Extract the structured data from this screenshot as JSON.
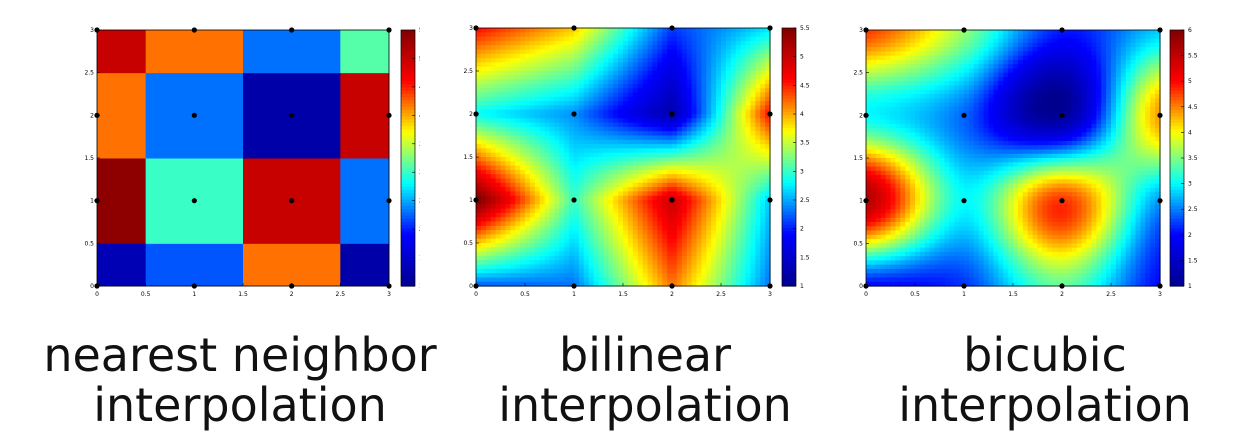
{
  "captions": [
    {
      "line1": "nearest neighbor",
      "line2": "interpolation"
    },
    {
      "line1": "bilinear",
      "line2": "interpolation"
    },
    {
      "line1": "bicubic",
      "line2": "interpolation"
    }
  ],
  "chart_data": [
    {
      "type": "heatmap",
      "method": "nearest",
      "x": [
        0,
        1,
        2,
        3
      ],
      "y": [
        0,
        1,
        2,
        3
      ],
      "z": [
        [
          1.3,
          2.2,
          4.2,
          1.2
        ],
        [
          5.4,
          3.0,
          5.0,
          2.3
        ],
        [
          4.2,
          2.3,
          1.2,
          5.0
        ],
        [
          5.0,
          4.2,
          2.3,
          3.1
        ]
      ],
      "xlim": [
        0,
        3
      ],
      "ylim": [
        0,
        3
      ],
      "xticks": [
        "0",
        "0.5",
        "1",
        "1.5",
        "2",
        "2.5",
        "3"
      ],
      "yticks": [
        "0",
        "0.5",
        "1",
        "1.5",
        "2",
        "2.5",
        "3"
      ],
      "colorbar": {
        "min": 1,
        "max": 5.5,
        "ticks": [
          "1",
          "1.5",
          "2",
          "2.5",
          "3",
          "3.5",
          "4",
          "4.5",
          "5",
          "5.5"
        ]
      },
      "colormap": [
        "#00008f",
        "#0000ff",
        "#00ffff",
        "#ffff00",
        "#ff0000",
        "#800000"
      ],
      "grid": false
    },
    {
      "type": "heatmap",
      "method": "bilinear",
      "x": [
        0,
        1,
        2,
        3
      ],
      "y": [
        0,
        1,
        2,
        3
      ],
      "z": [
        [
          2.2,
          2.3,
          4.2,
          2.3
        ],
        [
          5.6,
          3.0,
          5.0,
          2.6
        ],
        [
          2.8,
          2.4,
          1.2,
          4.6
        ],
        [
          4.6,
          3.9,
          2.1,
          2.7
        ]
      ],
      "xlim": [
        0,
        3
      ],
      "ylim": [
        0,
        3
      ],
      "xticks": [
        "0",
        "0.5",
        "1",
        "1.5",
        "2",
        "2.5",
        "3"
      ],
      "yticks": [
        "0",
        "0.5",
        "1",
        "1.5",
        "2",
        "2.5",
        "3"
      ],
      "colorbar": {
        "min": 1,
        "max": 5.5,
        "ticks": [
          "1",
          "1.5",
          "2",
          "2.5",
          "3",
          "3.5",
          "4",
          "4.5",
          "5",
          "5.5"
        ]
      },
      "colormap": [
        "#00008f",
        "#0000ff",
        "#00ffff",
        "#ffff00",
        "#ff0000",
        "#800000"
      ],
      "grid": false
    },
    {
      "type": "heatmap",
      "method": "bicubic",
      "x": [
        0,
        1,
        2,
        3
      ],
      "y": [
        0,
        1,
        2,
        3
      ],
      "z": [
        [
          2.0,
          2.2,
          3.4,
          2.0
        ],
        [
          5.6,
          3.0,
          4.8,
          2.6
        ],
        [
          3.0,
          2.4,
          1.1,
          4.4
        ],
        [
          4.8,
          3.6,
          2.1,
          2.8
        ]
      ],
      "xlim": [
        0,
        3
      ],
      "ylim": [
        0,
        3
      ],
      "xticks": [
        "0",
        "0.5",
        "1",
        "1.5",
        "2",
        "2.5",
        "3"
      ],
      "yticks": [
        "0",
        "0.5",
        "1",
        "1.5",
        "2",
        "2.5",
        "3"
      ],
      "colorbar": {
        "min": 1,
        "max": 6,
        "ticks": [
          "1",
          "1.5",
          "2",
          "2.5",
          "3",
          "3.5",
          "4",
          "4.5",
          "5",
          "5.5",
          "6"
        ]
      },
      "colormap": [
        "#00008f",
        "#0000ff",
        "#00ffff",
        "#ffff00",
        "#ff0000",
        "#800000"
      ],
      "grid": false
    }
  ]
}
